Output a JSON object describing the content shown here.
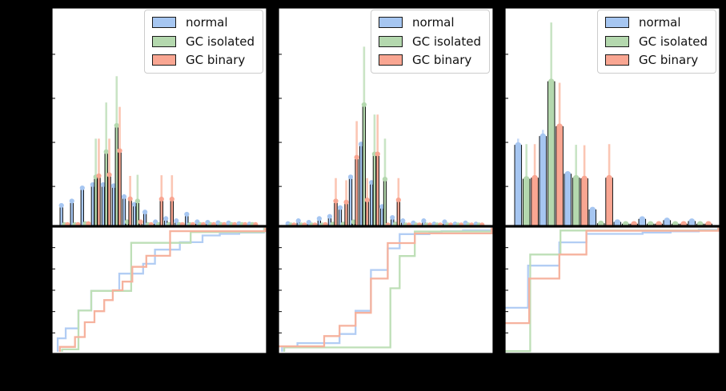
{
  "figure": {
    "background": "#000000",
    "panel_background": "#ffffff"
  },
  "legend": {
    "position": "upper-right",
    "items": [
      {
        "label": "normal",
        "color": "#a6c6f1"
      },
      {
        "label": "GC isolated",
        "color": "#b4d8ae"
      },
      {
        "label": "GC binary",
        "color": "#f9a692"
      }
    ]
  },
  "colors": {
    "bar_fill": [
      "#a6c6f1",
      "#b4d8ae",
      "#f9a692"
    ],
    "bar_edge": "#000000",
    "error_line": [
      "#c7daf7",
      "#c9e4c5",
      "#fbc6b4"
    ],
    "cdf_line": [
      "#b2cdf4",
      "#bedfb7",
      "#f6b29e"
    ],
    "spine": "#000000"
  },
  "chart_data": {
    "type": "bar",
    "subtype": "grouped histogram with error bars (top) + cumulative step distribution (bottom), three panels",
    "title": "",
    "xlabel": "",
    "ylabel": "",
    "series_names": [
      "normal",
      "GC isolated",
      "GC binary"
    ],
    "value_units": "fraction of panel axis (tick labels rendered black-on-black, not legible)",
    "grid": false,
    "legend_position": "upper right",
    "panels": [
      {
        "id": "left",
        "hist": {
          "normal": [
            0.095,
            0.115,
            0.175,
            0.19,
            0.19,
            0.185,
            0.135,
            0.1,
            0.065,
            0.02,
            0.035,
            0.025,
            0.055,
            0.02,
            0.018,
            0.016,
            0.015,
            0.012,
            0.01
          ],
          "gc_isolated": [
            0.008,
            0.008,
            0.012,
            0.225,
            0.34,
            0.46,
            0.02,
            0.115,
            0.008,
            0.008,
            0.008,
            0.008,
            0.008,
            0.008,
            0.008,
            0.008,
            0.008,
            0.008,
            0.008
          ],
          "gc_binary": [
            0.008,
            0.008,
            0.012,
            0.23,
            0.235,
            0.345,
            0.125,
            0.02,
            0.008,
            0.124,
            0.124,
            0.008,
            0.008,
            0.008,
            0.008,
            0.008,
            0.008,
            0.008,
            0.008
          ],
          "err_normal": [
            0,
            0,
            0,
            0,
            0,
            0,
            0,
            0,
            0,
            0,
            0,
            0,
            0,
            0,
            0,
            0,
            0,
            0,
            0
          ],
          "err_isolated": [
            0,
            0,
            0,
            0.4,
            0.565,
            0.685,
            0,
            0.235,
            0,
            0,
            0,
            0,
            0,
            0,
            0,
            0,
            0,
            0,
            0
          ],
          "err_binary": [
            0,
            0,
            0,
            0.4,
            0.4,
            0.545,
            0.23,
            0,
            0,
            0.233,
            0.233,
            0,
            0,
            0,
            0,
            0,
            0,
            0,
            0
          ]
        },
        "cdf": {
          "normal": [
            [
              0.03,
              0
            ],
            [
              0.03,
              0.11
            ],
            [
              0.067,
              0.11
            ],
            [
              0.067,
              0.19
            ],
            [
              0.126,
              0.19
            ],
            [
              0.126,
              0.335
            ],
            [
              0.185,
              0.335
            ],
            [
              0.185,
              0.495
            ],
            [
              0.315,
              0.495
            ],
            [
              0.315,
              0.635
            ],
            [
              0.425,
              0.635
            ],
            [
              0.425,
              0.715
            ],
            [
              0.48,
              0.715
            ],
            [
              0.48,
              0.83
            ],
            [
              0.595,
              0.83
            ],
            [
              0.595,
              0.89
            ],
            [
              0.7,
              0.89
            ],
            [
              0.7,
              0.945
            ],
            [
              0.78,
              0.945
            ],
            [
              0.78,
              0.958
            ],
            [
              0.87,
              0.958
            ],
            [
              0.87,
              0.968
            ],
            [
              0.985,
              0.968
            ],
            [
              0.985,
              1.0
            ],
            [
              1.0,
              1.0
            ]
          ],
          "gc_isolated": [
            [
              0.05,
              0
            ],
            [
              0.05,
              0.02
            ],
            [
              0.126,
              0.02
            ],
            [
              0.126,
              0.335
            ],
            [
              0.185,
              0.335
            ],
            [
              0.185,
              0.495
            ],
            [
              0.37,
              0.495
            ],
            [
              0.37,
              0.885
            ],
            [
              0.645,
              0.885
            ],
            [
              0.645,
              0.973
            ],
            [
              0.985,
              0.973
            ],
            [
              0.985,
              1.0
            ],
            [
              1.0,
              1.0
            ]
          ],
          "gc_binary": [
            [
              0.04,
              0
            ],
            [
              0.04,
              0.04
            ],
            [
              0.11,
              0.04
            ],
            [
              0.11,
              0.12
            ],
            [
              0.155,
              0.12
            ],
            [
              0.155,
              0.24
            ],
            [
              0.2,
              0.24
            ],
            [
              0.2,
              0.33
            ],
            [
              0.245,
              0.33
            ],
            [
              0.245,
              0.42
            ],
            [
              0.285,
              0.42
            ],
            [
              0.285,
              0.5
            ],
            [
              0.33,
              0.5
            ],
            [
              0.33,
              0.57
            ],
            [
              0.375,
              0.57
            ],
            [
              0.375,
              0.69
            ],
            [
              0.44,
              0.69
            ],
            [
              0.44,
              0.78
            ],
            [
              0.55,
              0.78
            ],
            [
              0.55,
              0.98
            ],
            [
              0.99,
              0.98
            ],
            [
              0.99,
              1.0
            ],
            [
              1.0,
              1.0
            ]
          ]
        }
      },
      {
        "id": "center",
        "hist": {
          "normal": [
            0.012,
            0.025,
            0.018,
            0.035,
            0.045,
            0.085,
            0.225,
            0.375,
            0.2,
            0.09,
            0.04,
            0.025,
            0.015,
            0.025,
            0.01,
            0.02,
            0.01,
            0.015,
            0.01
          ],
          "gc_isolated": [
            0.006,
            0.006,
            0.006,
            0.006,
            0.01,
            0.01,
            0.02,
            0.555,
            0.33,
            0.215,
            0.01,
            0.006,
            0.006,
            0.006,
            0.006,
            0.006,
            0.006,
            0.006,
            0.006
          ],
          "gc_binary": [
            0.006,
            0.006,
            0.006,
            0.008,
            0.115,
            0.11,
            0.315,
            0.12,
            0.33,
            0.006,
            0.12,
            0.006,
            0.006,
            0.006,
            0.006,
            0.006,
            0.006,
            0.006,
            0.006
          ],
          "err_normal": [
            0,
            0,
            0,
            0,
            0,
            0,
            0,
            0,
            0,
            0,
            0,
            0,
            0,
            0,
            0,
            0,
            0,
            0,
            0
          ],
          "err_isolated": [
            0,
            0,
            0,
            0,
            0,
            0,
            0,
            0.82,
            0.51,
            0.4,
            0,
            0,
            0,
            0,
            0,
            0,
            0,
            0,
            0
          ],
          "err_binary": [
            0,
            0,
            0,
            0,
            0.22,
            0.21,
            0.48,
            0.22,
            0.51,
            0,
            0.22,
            0,
            0,
            0,
            0,
            0,
            0,
            0,
            0
          ]
        },
        "cdf": {
          "normal": [
            [
              0.02,
              0
            ],
            [
              0.02,
              0.044
            ],
            [
              0.091,
              0.044
            ],
            [
              0.091,
              0.071
            ],
            [
              0.286,
              0.071
            ],
            [
              0.286,
              0.145
            ],
            [
              0.36,
              0.145
            ],
            [
              0.36,
              0.333
            ],
            [
              0.431,
              0.333
            ],
            [
              0.431,
              0.665
            ],
            [
              0.509,
              0.665
            ],
            [
              0.509,
              0.84
            ],
            [
              0.564,
              0.84
            ],
            [
              0.564,
              0.956
            ],
            [
              0.702,
              0.956
            ],
            [
              0.702,
              0.967
            ],
            [
              0.758,
              0.967
            ],
            [
              0.758,
              0.979
            ],
            [
              0.857,
              0.979
            ],
            [
              0.857,
              0.985
            ],
            [
              0.99,
              0.985
            ],
            [
              0.99,
              1.0
            ],
            [
              1.0,
              1.0
            ]
          ],
          "gc_isolated": [
            [
              0.03,
              0
            ],
            [
              0.03,
              0.036
            ],
            [
              0.521,
              0.036
            ],
            [
              0.521,
              0.516
            ],
            [
              0.564,
              0.516
            ],
            [
              0.564,
              0.778
            ],
            [
              0.634,
              0.778
            ],
            [
              0.634,
              0.977
            ],
            [
              0.99,
              0.977
            ],
            [
              0.99,
              1.0
            ],
            [
              1.0,
              1.0
            ]
          ],
          "gc_binary": [
            [
              0.0,
              0.044
            ],
            [
              0.215,
              0.044
            ],
            [
              0.215,
              0.128
            ],
            [
              0.286,
              0.128
            ],
            [
              0.286,
              0.212
            ],
            [
              0.36,
              0.212
            ],
            [
              0.36,
              0.317
            ],
            [
              0.431,
              0.317
            ],
            [
              0.431,
              0.595
            ],
            [
              0.509,
              0.595
            ],
            [
              0.509,
              0.883
            ],
            [
              0.634,
              0.883
            ],
            [
              0.634,
              0.962
            ],
            [
              0.99,
              0.962
            ],
            [
              0.99,
              1.0
            ],
            [
              1.0,
              1.0
            ]
          ]
        }
      },
      {
        "id": "right",
        "hist": {
          "normal": [
            0.37,
            0.41,
            0.238,
            0.075,
            0.018,
            0.032,
            0.026,
            0.022
          ],
          "gc_isolated": [
            0.215,
            0.66,
            0.22,
            0.012,
            0.01,
            0.01,
            0.01,
            0.01
          ],
          "gc_binary": [
            0.22,
            0.455,
            0.217,
            0.22,
            0.01,
            0.01,
            0.01,
            0.01
          ],
          "err_normal": [
            0.4,
            0.44,
            0,
            0,
            0,
            0,
            0,
            0
          ],
          "err_isolated": [
            0.375,
            0.93,
            0.372,
            0,
            0,
            0,
            0,
            0
          ],
          "err_binary": [
            0.375,
            0.655,
            0.37,
            0.375,
            0,
            0,
            0,
            0
          ]
        },
        "cdf": {
          "normal": [
            [
              0.0,
              0.358
            ],
            [
              0.11,
              0.358
            ],
            [
              0.11,
              0.7
            ],
            [
              0.255,
              0.7
            ],
            [
              0.255,
              0.889
            ],
            [
              0.38,
              0.889
            ],
            [
              0.38,
              0.958
            ],
            [
              0.64,
              0.958
            ],
            [
              0.64,
              0.968
            ],
            [
              0.77,
              0.968
            ],
            [
              0.77,
              0.978
            ],
            [
              0.9,
              0.978
            ],
            [
              0.9,
              0.99
            ],
            [
              1.0,
              0.99
            ],
            [
              1.0,
              1.0
            ]
          ],
          "gc_isolated": [
            [
              0.0,
              0.005
            ],
            [
              0.12,
              0.005
            ],
            [
              0.12,
              0.79
            ],
            [
              0.26,
              0.79
            ],
            [
              0.26,
              0.985
            ],
            [
              0.99,
              0.985
            ],
            [
              0.99,
              1.0
            ],
            [
              1.0,
              1.0
            ]
          ],
          "gc_binary": [
            [
              0.0,
              0.233
            ],
            [
              0.115,
              0.233
            ],
            [
              0.115,
              0.595
            ],
            [
              0.255,
              0.595
            ],
            [
              0.255,
              0.79
            ],
            [
              0.38,
              0.79
            ],
            [
              0.38,
              0.983
            ],
            [
              0.99,
              0.983
            ],
            [
              0.99,
              1.0
            ],
            [
              1.0,
              1.0
            ]
          ]
        }
      }
    ]
  }
}
